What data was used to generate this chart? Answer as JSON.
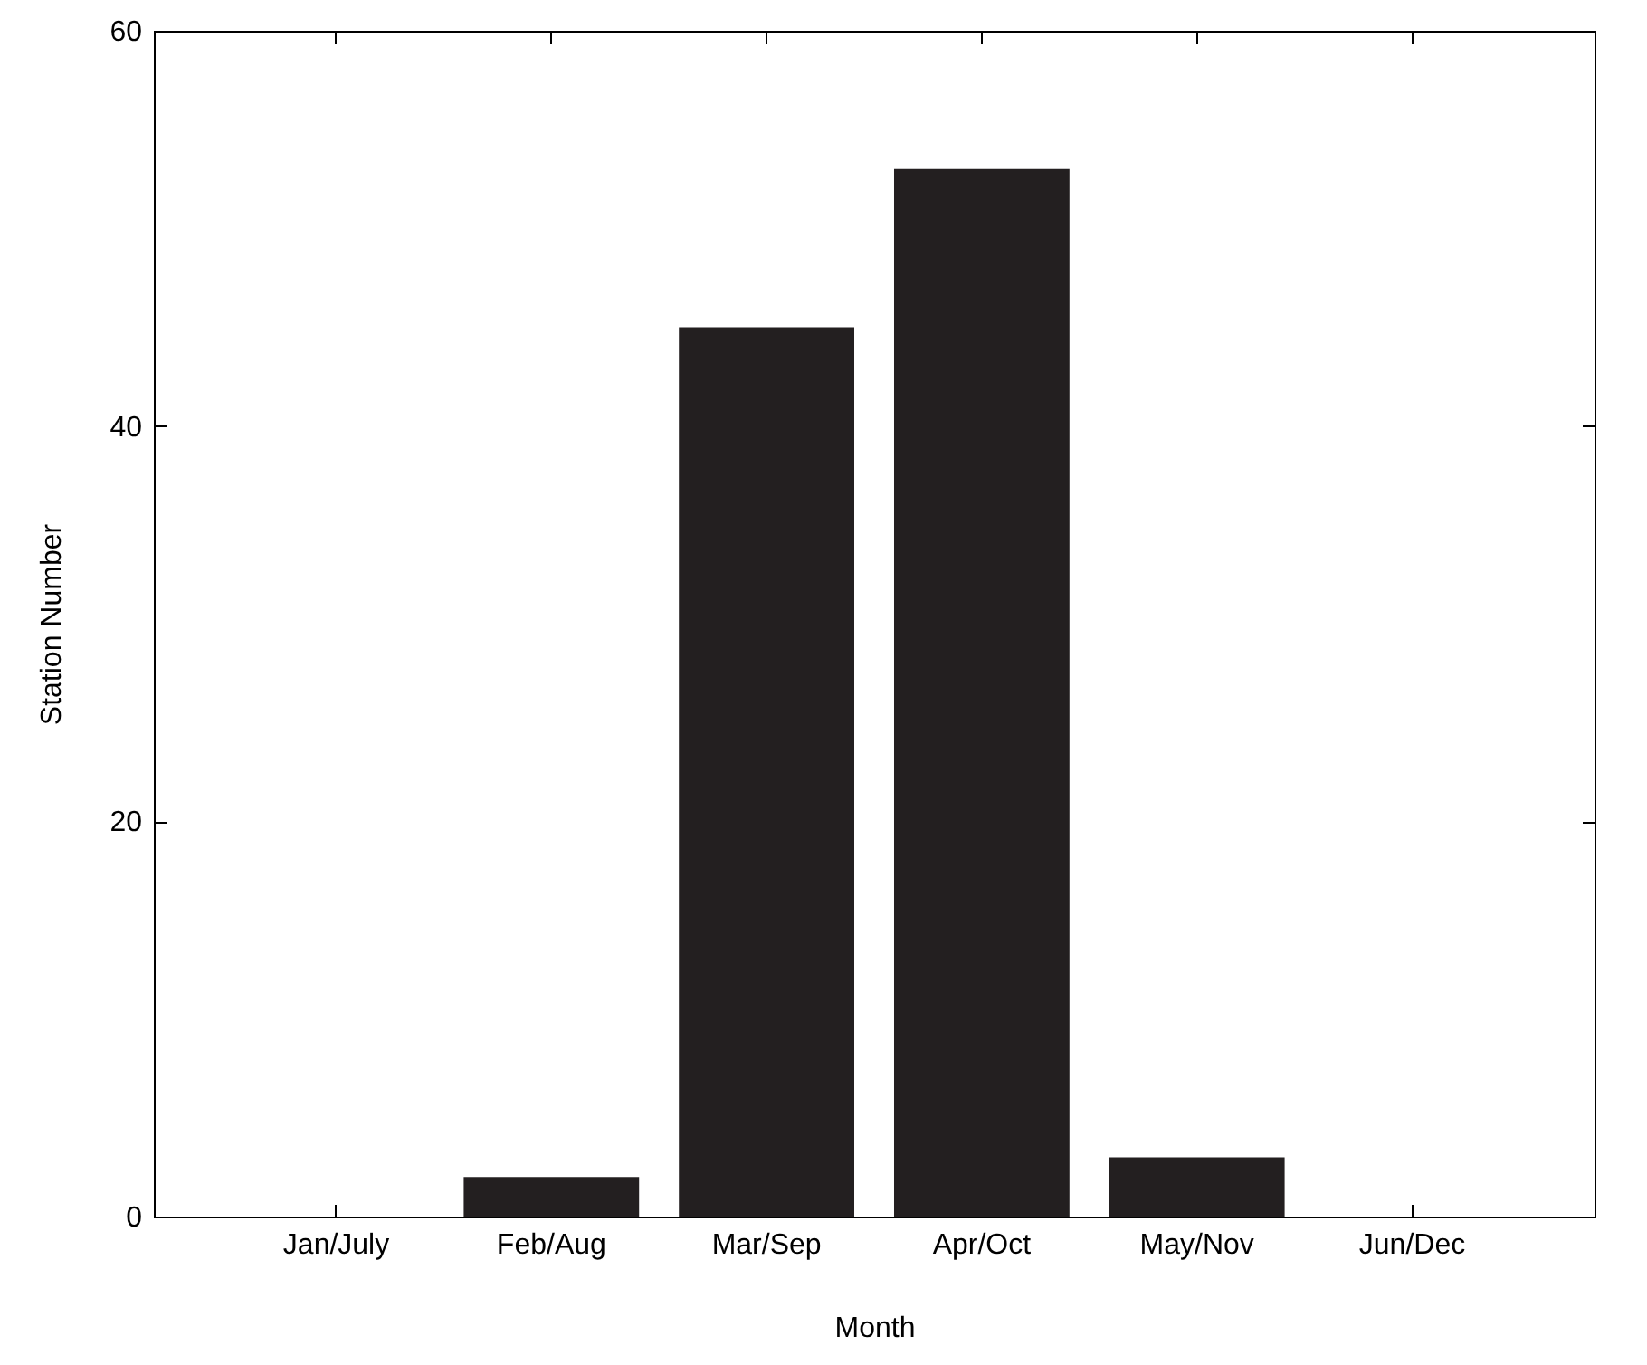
{
  "chart_data": {
    "type": "bar",
    "xlabel": "Month",
    "ylabel": "Station Number",
    "categories": [
      "Jan/July",
      "Feb/Aug",
      "Mar/Sep",
      "Apr/Oct",
      "May/Nov",
      "Jun/Dec"
    ],
    "values": [
      0,
      2,
      45,
      53,
      3,
      0
    ],
    "color": "#231f20",
    "ylim": [
      0,
      60
    ],
    "yticks": [
      0,
      20,
      40,
      60
    ],
    "grid": false
  }
}
